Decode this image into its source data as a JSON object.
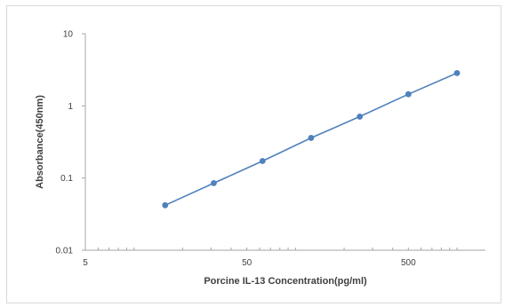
{
  "chart_data": {
    "type": "line",
    "title": "",
    "xlabel": "Porcine IL-13 Concentration(pg/ml)",
    "ylabel": "Absorbance(450nm)",
    "x_scale": "log",
    "y_scale": "log",
    "xlim": [
      5,
      1500
    ],
    "ylim": [
      0.01,
      10
    ],
    "x_tick_labels": [
      "5",
      "50",
      "500"
    ],
    "x_tick_values": [
      5,
      50,
      500
    ],
    "y_tick_labels": [
      "0.01",
      "0.1",
      "1",
      "10"
    ],
    "y_tick_values": [
      0.01,
      0.1,
      1,
      10
    ],
    "grid": false,
    "legend": "none",
    "series": [
      {
        "x": [
          15.6,
          31.2,
          62.5,
          125,
          250,
          500,
          1000
        ],
        "y": [
          0.042,
          0.085,
          0.172,
          0.36,
          0.71,
          1.45,
          2.85
        ],
        "color": "#4f81bd"
      }
    ]
  }
}
